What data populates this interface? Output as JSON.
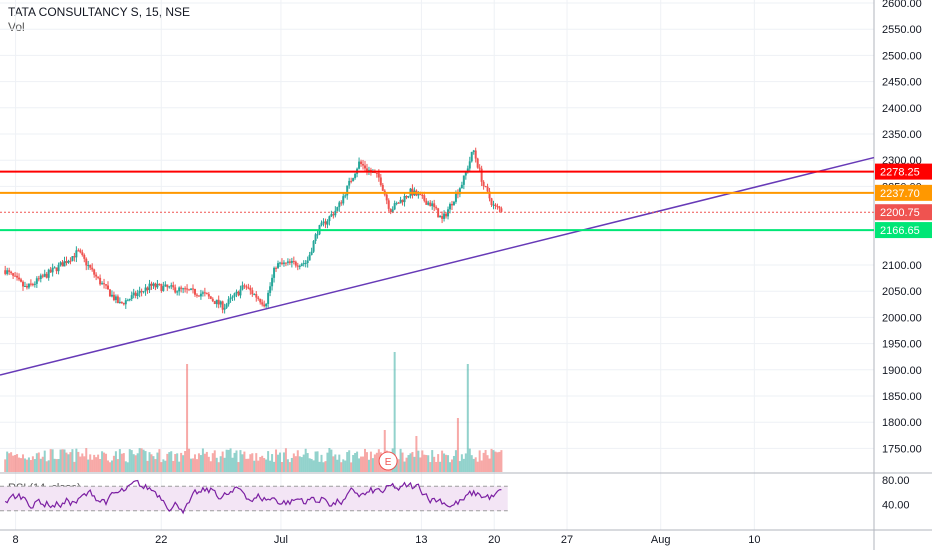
{
  "header": {
    "symbol_line": "TATA CONSULTANCY S, 15, NSE",
    "volume_label": "Vol",
    "rsi_label": "RSI (14, close)"
  },
  "colors": {
    "up": "#26a69a",
    "down": "#ef5350",
    "trendline": "#673ab7",
    "level_red": "#ff0000",
    "level_orange": "#ff9800",
    "level_green": "#00e676",
    "rsi_line": "#7b1fa2",
    "rsi_band": "#f3e5f5"
  },
  "chart_data": {
    "type": "candlestick",
    "x_ticks": [
      "8",
      "22",
      "Jul",
      "13",
      "20",
      "27",
      "Aug",
      "10"
    ],
    "y_ticks": [
      "2600.00",
      "2550.00",
      "2500.00",
      "2450.00",
      "2400.00",
      "2350.00",
      "2300.00",
      "2250.00",
      "2100.00",
      "2050.00",
      "2000.00",
      "1950.00",
      "1900.00",
      "1850.00",
      "1800.00",
      "1750.00"
    ],
    "ylim": [
      1720,
      2610
    ],
    "price_levels": [
      {
        "value": 2278.25,
        "label": "2278.25",
        "color": "#ff0000",
        "style": "solid"
      },
      {
        "value": 2237.7,
        "label": "2237.70",
        "color": "#ff9800",
        "style": "solid"
      },
      {
        "value": 2200.75,
        "label": "2200.75",
        "color": "#ef5350",
        "style": "dotted"
      },
      {
        "value": 2166.65,
        "label": "2166.65",
        "color": "#00e676",
        "style": "solid"
      }
    ],
    "price_path": [
      {
        "t": 0,
        "v": 2090
      },
      {
        "t": 2,
        "v": 2055
      },
      {
        "t": 5,
        "v": 2095
      },
      {
        "t": 7,
        "v": 2125
      },
      {
        "t": 9,
        "v": 2070
      },
      {
        "t": 11,
        "v": 2025
      },
      {
        "t": 14,
        "v": 2060
      },
      {
        "t": 16,
        "v": 2055
      },
      {
        "t": 19,
        "v": 2045
      },
      {
        "t": 21,
        "v": 2020
      },
      {
        "t": 23,
        "v": 2060
      },
      {
        "t": 25,
        "v": 2025
      },
      {
        "t": 26,
        "v": 2100
      },
      {
        "t": 29,
        "v": 2105
      },
      {
        "t": 30,
        "v": 2165
      },
      {
        "t": 32,
        "v": 2210
      },
      {
        "t": 34,
        "v": 2295
      },
      {
        "t": 36,
        "v": 2265
      },
      {
        "t": 37,
        "v": 2205
      },
      {
        "t": 39,
        "v": 2240
      },
      {
        "t": 41,
        "v": 2215
      },
      {
        "t": 42,
        "v": 2185
      },
      {
        "t": 44,
        "v": 2260
      },
      {
        "t": 45,
        "v": 2320
      },
      {
        "t": 46,
        "v": 2250
      },
      {
        "t": 47,
        "v": 2210
      },
      {
        "t": 47.8,
        "v": 2205
      }
    ],
    "trendline": {
      "t1": -0.5,
      "v1": 1890,
      "t2": 83.5,
      "v2": 2305
    },
    "x_start_t": -0.5,
    "x_end_t": 83.5,
    "volume_spikes": [
      {
        "t": 17.5,
        "rel": 0.9
      },
      {
        "t": 37.5,
        "rel": 1.0
      },
      {
        "t": 44.5,
        "rel": 0.9
      },
      {
        "t": 36.5,
        "rel": 0.35
      },
      {
        "t": 43.5,
        "rel": 0.45
      },
      {
        "t": 39.5,
        "rel": 0.3
      }
    ],
    "rsi": {
      "y_ticks": [
        "80.00",
        "40.00"
      ],
      "upper": 70,
      "lower": 30,
      "ylim": [
        15,
        90
      ]
    }
  }
}
